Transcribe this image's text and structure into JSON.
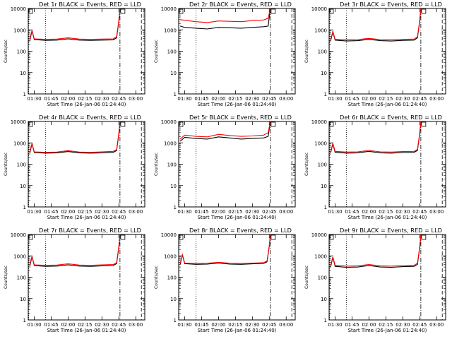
{
  "chart_data": [
    {
      "type": "line",
      "title": "Det 1r BLACK = Events, RED = LLD",
      "xlabel": "Start Time (26-Jan-06 01:24:40)",
      "ylabel": "Counts/sec",
      "yscale": "log",
      "ylim": [
        1,
        10000
      ],
      "xlim": [
        "01:24:40",
        "03:08"
      ],
      "x_ticks": [
        "01:30",
        "01:45",
        "02:00",
        "02:15",
        "02:30",
        "02:45",
        "03:00"
      ],
      "y_ticks": [
        "1",
        "10",
        "100",
        "1000",
        "10000"
      ],
      "vlines": {
        "dotted": [
          "01:25",
          "01:40"
        ],
        "dash_dot": [
          "02:46"
        ],
        "dashed": [
          "03:05"
        ]
      },
      "series": [
        {
          "name": "BLACK",
          "color": "#000000",
          "x": [
            "01:26",
            "01:28",
            "01:30",
            "01:40",
            "01:50",
            "02:00",
            "02:10",
            "02:20",
            "02:30",
            "02:40",
            "02:43",
            "02:45",
            "02:46"
          ],
          "values": [
            300,
            900,
            350,
            320,
            330,
            380,
            330,
            320,
            330,
            340,
            420,
            2500,
            10000
          ]
        },
        {
          "name": "RED",
          "color": "#ff0000",
          "x": [
            "01:26",
            "01:28",
            "01:30",
            "01:40",
            "01:50",
            "02:00",
            "02:10",
            "02:20",
            "02:30",
            "02:40",
            "02:43",
            "02:45",
            "02:46"
          ],
          "values": [
            340,
            950,
            380,
            360,
            370,
            420,
            370,
            360,
            370,
            380,
            480,
            2800,
            10000
          ]
        }
      ]
    },
    {
      "type": "line",
      "title": "Det 2r BLACK = Events, RED = LLD",
      "xlabel": "Start Time (26-Jan-06 01:24:40)",
      "ylabel": "Counts/sec",
      "yscale": "log",
      "ylim": [
        1,
        10000
      ],
      "xlim": [
        "01:24:40",
        "03:08"
      ],
      "x_ticks": [
        "01:30",
        "01:45",
        "02:00",
        "02:15",
        "02:30",
        "02:45",
        "03:00"
      ],
      "y_ticks": [
        "1",
        "10",
        "100",
        "1000",
        "10000"
      ],
      "vlines": {
        "dotted": [
          "01:25",
          "01:40"
        ],
        "dash_dot": [
          "02:46"
        ],
        "dashed": [
          "03:05"
        ]
      },
      "series": [
        {
          "name": "BLACK",
          "color": "#000000",
          "x": [
            "01:26",
            "01:30",
            "01:40",
            "01:50",
            "02:00",
            "02:10",
            "02:20",
            "02:30",
            "02:40",
            "02:44",
            "02:46"
          ],
          "values": [
            1500,
            1300,
            1200,
            1100,
            1300,
            1250,
            1200,
            1300,
            1400,
            1500,
            10000
          ]
        },
        {
          "name": "RED",
          "color": "#ff0000",
          "x": [
            "01:26",
            "01:30",
            "01:40",
            "01:50",
            "02:00",
            "02:10",
            "02:20",
            "02:30",
            "02:40",
            "02:44",
            "02:46"
          ],
          "values": [
            3000,
            2800,
            2400,
            2200,
            2600,
            2500,
            2400,
            2700,
            2900,
            3500,
            10000
          ]
        }
      ]
    },
    {
      "type": "line",
      "title": "Det 3r BLACK = Events, RED = LLD",
      "xlabel": "Start Time (26-Jan-06 01:24:40)",
      "ylabel": "Counts/sec",
      "yscale": "log",
      "ylim": [
        1,
        10000
      ],
      "xlim": [
        "01:24:40",
        "03:08"
      ],
      "x_ticks": [
        "01:30",
        "01:45",
        "02:00",
        "02:15",
        "02:30",
        "02:45",
        "03:00"
      ],
      "y_ticks": [
        "1",
        "10",
        "100",
        "1000",
        "10000"
      ],
      "vlines": {
        "dotted": [
          "01:25",
          "01:40"
        ],
        "dash_dot": [
          "02:46"
        ],
        "dashed": [
          "03:05"
        ]
      },
      "series": [
        {
          "name": "BLACK",
          "color": "#000000",
          "x": [
            "01:26",
            "01:28",
            "01:30",
            "01:40",
            "01:50",
            "02:00",
            "02:10",
            "02:20",
            "02:30",
            "02:40",
            "02:43",
            "02:45",
            "02:46"
          ],
          "values": [
            300,
            800,
            330,
            300,
            310,
            360,
            310,
            300,
            320,
            330,
            420,
            2500,
            10000
          ]
        },
        {
          "name": "RED",
          "color": "#ff0000",
          "x": [
            "01:26",
            "01:28",
            "01:30",
            "01:40",
            "01:50",
            "02:00",
            "02:10",
            "02:20",
            "02:30",
            "02:40",
            "02:43",
            "02:45",
            "02:46"
          ],
          "values": [
            340,
            850,
            360,
            340,
            350,
            400,
            350,
            340,
            360,
            370,
            470,
            2800,
            10000
          ]
        }
      ]
    },
    {
      "type": "line",
      "title": "Det 4r BLACK = Events, RED = LLD",
      "xlabel": "Start Time (26-Jan-06 01:24:40)",
      "ylabel": "Counts/sec",
      "yscale": "log",
      "ylim": [
        1,
        10000
      ],
      "xlim": [
        "01:24:40",
        "03:08"
      ],
      "x_ticks": [
        "01:30",
        "01:45",
        "02:00",
        "02:15",
        "02:30",
        "02:45",
        "03:00"
      ],
      "y_ticks": [
        "1",
        "10",
        "100",
        "1000",
        "10000"
      ],
      "vlines": {
        "dotted": [
          "01:25",
          "01:40"
        ],
        "dash_dot": [
          "02:46"
        ],
        "dashed": [
          "03:05"
        ]
      },
      "series": [
        {
          "name": "BLACK",
          "color": "#000000",
          "x": [
            "01:26",
            "01:28",
            "01:30",
            "01:40",
            "01:50",
            "02:00",
            "02:10",
            "02:20",
            "02:30",
            "02:40",
            "02:43",
            "02:45",
            "02:46"
          ],
          "values": [
            320,
            900,
            350,
            330,
            340,
            390,
            340,
            330,
            340,
            360,
            430,
            2600,
            10000
          ]
        },
        {
          "name": "RED",
          "color": "#ff0000",
          "x": [
            "01:26",
            "01:28",
            "01:30",
            "01:40",
            "01:50",
            "02:00",
            "02:10",
            "02:20",
            "02:30",
            "02:40",
            "02:43",
            "02:45",
            "02:46"
          ],
          "values": [
            360,
            950,
            380,
            360,
            370,
            430,
            370,
            360,
            380,
            400,
            480,
            2900,
            10000
          ]
        }
      ]
    },
    {
      "type": "line",
      "title": "Det 5r BLACK = Events, RED = LLD",
      "xlabel": "Start Time (26-Jan-06 01:24:40)",
      "ylabel": "Counts/sec",
      "yscale": "log",
      "ylim": [
        1,
        10000
      ],
      "xlim": [
        "01:24:40",
        "03:08"
      ],
      "x_ticks": [
        "01:30",
        "01:45",
        "02:00",
        "02:15",
        "02:30",
        "02:45",
        "03:00"
      ],
      "y_ticks": [
        "1",
        "10",
        "100",
        "1000",
        "10000"
      ],
      "vlines": {
        "dotted": [
          "01:25",
          "01:40"
        ],
        "dash_dot": [
          "02:46"
        ],
        "dashed": [
          "03:05"
        ]
      },
      "series": [
        {
          "name": "BLACK",
          "color": "#000000",
          "x": [
            "01:26",
            "01:30",
            "01:40",
            "01:50",
            "02:00",
            "02:10",
            "02:20",
            "02:30",
            "02:40",
            "02:44",
            "02:46"
          ],
          "values": [
            1200,
            1800,
            1600,
            1500,
            1900,
            1700,
            1500,
            1600,
            1700,
            2000,
            10000
          ]
        },
        {
          "name": "RED",
          "color": "#ff0000",
          "x": [
            "01:26",
            "01:30",
            "01:40",
            "01:50",
            "02:00",
            "02:10",
            "02:20",
            "02:30",
            "02:40",
            "02:44",
            "02:46"
          ],
          "values": [
            1500,
            2300,
            2000,
            1900,
            2500,
            2200,
            2000,
            2100,
            2300,
            3000,
            10000
          ]
        }
      ]
    },
    {
      "type": "line",
      "title": "Det 6r BLACK = Events, RED = LLD",
      "xlabel": "Start Time (26-Jan-06 01:24:40)",
      "ylabel": "Counts/sec",
      "yscale": "log",
      "ylim": [
        1,
        10000
      ],
      "xlim": [
        "01:24:40",
        "03:08"
      ],
      "x_ticks": [
        "01:30",
        "01:45",
        "02:00",
        "02:15",
        "02:30",
        "02:45",
        "03:00"
      ],
      "y_ticks": [
        "1",
        "10",
        "100",
        "1000",
        "10000"
      ],
      "vlines": {
        "dotted": [
          "01:25",
          "01:40"
        ],
        "dash_dot": [
          "02:46"
        ],
        "dashed": [
          "03:05"
        ]
      },
      "series": [
        {
          "name": "BLACK",
          "color": "#000000",
          "x": [
            "01:26",
            "01:28",
            "01:30",
            "01:40",
            "01:50",
            "02:00",
            "02:10",
            "02:20",
            "02:30",
            "02:40",
            "02:43",
            "02:45",
            "02:46"
          ],
          "values": [
            330,
            900,
            360,
            330,
            340,
            400,
            340,
            330,
            350,
            360,
            440,
            2600,
            10000
          ]
        },
        {
          "name": "RED",
          "color": "#ff0000",
          "x": [
            "01:26",
            "01:28",
            "01:30",
            "01:40",
            "01:50",
            "02:00",
            "02:10",
            "02:20",
            "02:30",
            "02:40",
            "02:43",
            "02:45",
            "02:46"
          ],
          "values": [
            370,
            950,
            400,
            370,
            380,
            440,
            380,
            370,
            390,
            400,
            490,
            2900,
            10000
          ]
        }
      ]
    },
    {
      "type": "line",
      "title": "Det 7r BLACK = Events, RED = LLD",
      "xlabel": "Start Time (26-Jan-06 01:24:40)",
      "ylabel": "Counts/sec",
      "yscale": "log",
      "ylim": [
        1,
        10000
      ],
      "xlim": [
        "01:24:40",
        "03:08"
      ],
      "x_ticks": [
        "01:30",
        "01:45",
        "02:00",
        "02:15",
        "02:30",
        "02:45",
        "03:00"
      ],
      "y_ticks": [
        "1",
        "10",
        "100",
        "1000",
        "10000"
      ],
      "vlines": {
        "dotted": [
          "01:25",
          "01:40"
        ],
        "dash_dot": [
          "02:46"
        ],
        "dashed": [
          "03:05"
        ]
      },
      "series": [
        {
          "name": "BLACK",
          "color": "#000000",
          "x": [
            "01:26",
            "01:28",
            "01:30",
            "01:40",
            "01:50",
            "02:00",
            "02:10",
            "02:20",
            "02:30",
            "02:40",
            "02:43",
            "02:45",
            "02:46"
          ],
          "values": [
            320,
            900,
            350,
            320,
            330,
            380,
            330,
            320,
            340,
            350,
            430,
            2500,
            10000
          ]
        },
        {
          "name": "RED",
          "color": "#ff0000",
          "x": [
            "01:26",
            "01:28",
            "01:30",
            "01:40",
            "01:50",
            "02:00",
            "02:10",
            "02:20",
            "02:30",
            "02:40",
            "02:43",
            "02:45",
            "02:46"
          ],
          "values": [
            360,
            950,
            380,
            360,
            370,
            420,
            370,
            360,
            380,
            390,
            480,
            2800,
            10000
          ]
        }
      ]
    },
    {
      "type": "line",
      "title": "Det 8r BLACK = Events, RED = LLD",
      "xlabel": "Start Time (26-Jan-06 01:24:40)",
      "ylabel": "Counts/sec",
      "yscale": "log",
      "ylim": [
        1,
        10000
      ],
      "xlim": [
        "01:24:40",
        "03:08"
      ],
      "x_ticks": [
        "01:30",
        "01:45",
        "02:00",
        "02:15",
        "02:30",
        "02:45",
        "03:00"
      ],
      "y_ticks": [
        "1",
        "10",
        "100",
        "1000",
        "10000"
      ],
      "vlines": {
        "dotted": [
          "01:25",
          "01:40"
        ],
        "dash_dot": [
          "02:46"
        ],
        "dashed": [
          "03:05"
        ]
      },
      "series": [
        {
          "name": "BLACK",
          "color": "#000000",
          "x": [
            "01:26",
            "01:28",
            "01:30",
            "01:40",
            "01:50",
            "02:00",
            "02:10",
            "02:20",
            "02:30",
            "02:40",
            "02:43",
            "02:45",
            "02:46"
          ],
          "values": [
            400,
            1100,
            430,
            400,
            410,
            460,
            410,
            400,
            420,
            440,
            520,
            2800,
            10000
          ]
        },
        {
          "name": "RED",
          "color": "#ff0000",
          "x": [
            "01:26",
            "01:28",
            "01:30",
            "01:40",
            "01:50",
            "02:00",
            "02:10",
            "02:20",
            "02:30",
            "02:40",
            "02:43",
            "02:45",
            "02:46"
          ],
          "values": [
            440,
            1150,
            460,
            440,
            450,
            500,
            450,
            440,
            460,
            480,
            570,
            3100,
            10000
          ]
        }
      ]
    },
    {
      "type": "line",
      "title": "Det 9r BLACK = Events, RED = LLD",
      "xlabel": "Start Time (26-Jan-06 01:24:40)",
      "ylabel": "Counts/sec",
      "yscale": "log",
      "ylim": [
        1,
        10000
      ],
      "xlim": [
        "01:24:40",
        "03:08"
      ],
      "x_ticks": [
        "01:30",
        "01:45",
        "02:00",
        "02:15",
        "02:30",
        "02:45",
        "03:00"
      ],
      "y_ticks": [
        "1",
        "10",
        "100",
        "1000",
        "10000"
      ],
      "vlines": {
        "dotted": [
          "01:25",
          "01:40"
        ],
        "dash_dot": [
          "02:46"
        ],
        "dashed": [
          "03:05"
        ]
      },
      "series": [
        {
          "name": "BLACK",
          "color": "#000000",
          "x": [
            "01:26",
            "01:28",
            "01:30",
            "01:40",
            "01:50",
            "02:00",
            "02:10",
            "02:20",
            "02:30",
            "02:40",
            "02:43",
            "02:45",
            "02:46"
          ],
          "values": [
            300,
            850,
            320,
            290,
            300,
            350,
            300,
            290,
            310,
            320,
            400,
            2400,
            10000
          ]
        },
        {
          "name": "RED",
          "color": "#ff0000",
          "x": [
            "01:26",
            "01:28",
            "01:30",
            "01:40",
            "01:50",
            "02:00",
            "02:10",
            "02:20",
            "02:30",
            "02:40",
            "02:43",
            "02:45",
            "02:46"
          ],
          "values": [
            340,
            900,
            360,
            330,
            340,
            390,
            340,
            330,
            350,
            360,
            450,
            2700,
            10000
          ]
        }
      ]
    }
  ]
}
